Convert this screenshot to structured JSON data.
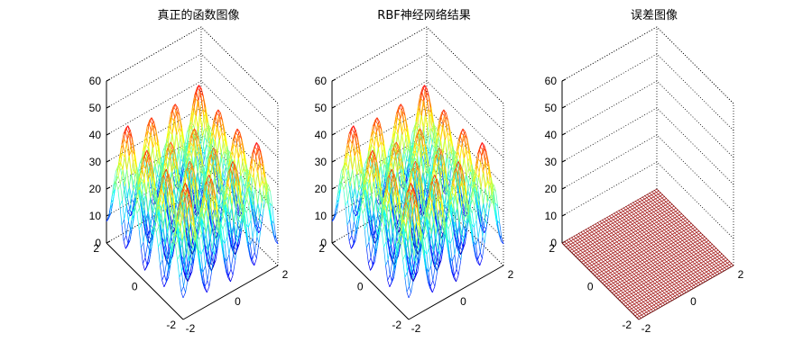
{
  "chart_data": [
    {
      "type": "surface",
      "title": "真正的函数图像",
      "xlabel": "",
      "ylabel": "",
      "zlabel": "",
      "function": "x^2 + y^2 - 10*cos(2*pi*x) - 10*cos(2*pi*y) + 20",
      "x_range": [
        -2,
        2
      ],
      "y_range": [
        -2,
        2
      ],
      "zlim": [
        0,
        60
      ],
      "z_ticks": [
        "0",
        "10",
        "20",
        "30",
        "40",
        "50",
        "60"
      ],
      "x_ticks": [
        "-2",
        "0",
        "2"
      ],
      "y_ticks": [
        "-2",
        "0",
        "2"
      ],
      "colormap": "jet",
      "style": "mesh",
      "grid": true
    },
    {
      "type": "surface",
      "title": "RBF神经网络结果",
      "xlabel": "",
      "ylabel": "",
      "zlabel": "",
      "function": "x^2 + y^2 - 10*cos(2*pi*x) - 10*cos(2*pi*y) + 20",
      "x_range": [
        -2,
        2
      ],
      "y_range": [
        -2,
        2
      ],
      "zlim": [
        0,
        60
      ],
      "z_ticks": [
        "0",
        "10",
        "20",
        "30",
        "40",
        "50",
        "60"
      ],
      "x_ticks": [
        "-2",
        "0",
        "2"
      ],
      "y_ticks": [
        "-2",
        "0",
        "2"
      ],
      "colormap": "jet",
      "style": "mesh",
      "grid": true
    },
    {
      "type": "surface",
      "title": "误差图像",
      "xlabel": "",
      "ylabel": "",
      "zlabel": "",
      "function": "0",
      "x_range": [
        -2,
        2
      ],
      "y_range": [
        -2,
        2
      ],
      "zlim": [
        0,
        60
      ],
      "z_ticks": [
        "0",
        "10",
        "20",
        "30",
        "40",
        "50",
        "60"
      ],
      "x_ticks": [
        "-2",
        "0",
        "2"
      ],
      "y_ticks": [
        "-2",
        "0",
        "2"
      ],
      "colormap": "jet",
      "style": "mesh",
      "grid": true,
      "mesh_color": "#a01010"
    }
  ]
}
